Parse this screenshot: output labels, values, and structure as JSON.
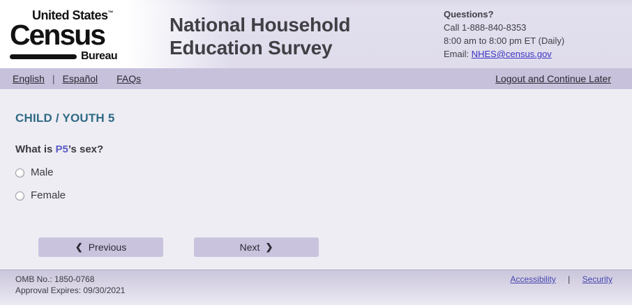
{
  "header": {
    "logo": {
      "line1": "United States",
      "tm": "™",
      "line2": "Census",
      "line3": "Bureau"
    },
    "title_line1": "National Household",
    "title_line2": "Education Survey",
    "questions": {
      "heading": "Questions?",
      "call": "Call 1-888-840-8353",
      "hours": "8:00 am to 8:00 pm ET (Daily)",
      "email_label": "Email: ",
      "email_link": "NHES@census.gov"
    }
  },
  "nav": {
    "english": "English",
    "espanol": "Español",
    "faqs": "FAQs",
    "separator": "|",
    "logout": "Logout and Continue Later"
  },
  "main": {
    "section_title": "CHILD / YOUTH 5",
    "question": {
      "prefix": "What is ",
      "person": "P5",
      "suffix": "’s sex?"
    },
    "options": [
      {
        "label": "Male",
        "selected": false
      },
      {
        "label": "Female",
        "selected": false
      }
    ],
    "prev_icon": "❮",
    "prev_label": "Previous",
    "next_label": "Next",
    "next_icon": "❯"
  },
  "footer": {
    "omb": "OMB No.: 1850-0768",
    "approval": "Approval Expires: 09/30/2021",
    "accessibility": "Accessibility",
    "separator": "|",
    "security": "Security"
  },
  "colors": {
    "header_bg": "#dfdcec",
    "nav_bg": "#c7c1dc",
    "content_bg": "#eeedf3",
    "button_bg": "#c9c3de",
    "section_title": "#2f6a85",
    "person_ref": "#5c5cc5",
    "email_link": "#3a35c2",
    "footer_link": "#4545ad",
    "text_dark": "#3a3a40"
  }
}
